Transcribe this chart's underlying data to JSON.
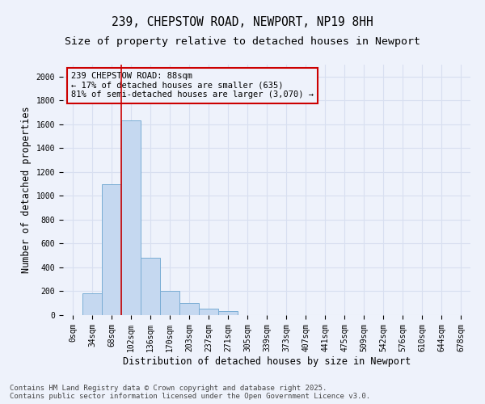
{
  "title_line1": "239, CHEPSTOW ROAD, NEWPORT, NP19 8HH",
  "title_line2": "Size of property relative to detached houses in Newport",
  "xlabel": "Distribution of detached houses by size in Newport",
  "ylabel": "Number of detached properties",
  "bar_color": "#c5d8f0",
  "bar_edge_color": "#7aadd4",
  "background_color": "#eef2fb",
  "grid_color": "#d8dff0",
  "categories": [
    "0sqm",
    "34sqm",
    "68sqm",
    "102sqm",
    "136sqm",
    "170sqm",
    "203sqm",
    "237sqm",
    "271sqm",
    "305sqm",
    "339sqm",
    "373sqm",
    "407sqm",
    "441sqm",
    "475sqm",
    "509sqm",
    "542sqm",
    "576sqm",
    "610sqm",
    "644sqm",
    "678sqm"
  ],
  "values": [
    0,
    180,
    1100,
    1630,
    480,
    200,
    100,
    55,
    35,
    0,
    0,
    0,
    0,
    0,
    0,
    0,
    0,
    0,
    0,
    0,
    0
  ],
  "ylim": [
    0,
    2100
  ],
  "yticks": [
    0,
    200,
    400,
    600,
    800,
    1000,
    1200,
    1400,
    1600,
    1800,
    2000
  ],
  "property_line_x": 2.5,
  "annotation_text_line1": "239 CHEPSTOW ROAD: 88sqm",
  "annotation_text_line2": "← 17% of detached houses are smaller (635)",
  "annotation_text_line3": "81% of semi-detached houses are larger (3,070) →",
  "annotation_box_color": "#cc0000",
  "footer_line1": "Contains HM Land Registry data © Crown copyright and database right 2025.",
  "footer_line2": "Contains public sector information licensed under the Open Government Licence v3.0.",
  "title_fontsize": 10.5,
  "subtitle_fontsize": 9.5,
  "axis_label_fontsize": 8.5,
  "tick_fontsize": 7,
  "annotation_fontsize": 7.5,
  "footer_fontsize": 6.5
}
